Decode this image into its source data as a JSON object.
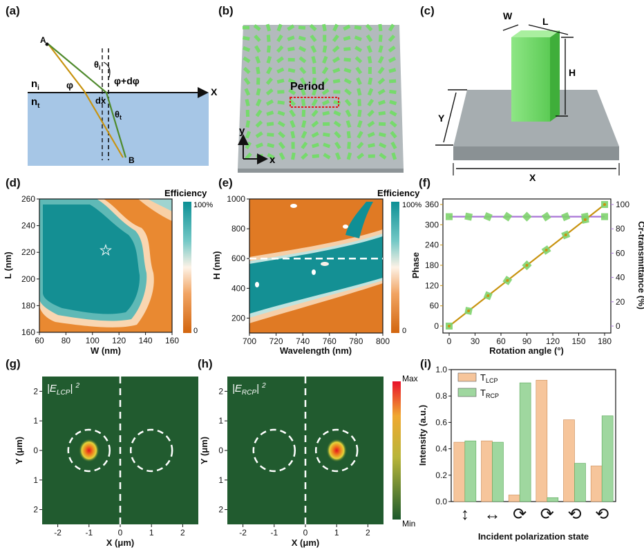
{
  "panels": {
    "a": {
      "label": "(a)",
      "point_a": "A",
      "point_b": "B",
      "n_i": "n",
      "n_i_sub": "i",
      "n_t": "n",
      "n_t_sub": "t",
      "phi": "φ",
      "phi_dphi": "φ+dφ",
      "dx": "dx",
      "theta_i": "θ",
      "theta_i_sub": "i",
      "theta_t": "θ",
      "theta_t_sub": "t",
      "x_axis": "X"
    },
    "b": {
      "label": "(b)",
      "period": "Period",
      "axis_x": "x",
      "axis_y": "y"
    },
    "c": {
      "label": "(c)",
      "w": "W",
      "l": "L",
      "h": "H",
      "y": "Y",
      "x": "X"
    },
    "d": {
      "label": "(d)"
    },
    "e": {
      "label": "(e)"
    },
    "f": {
      "label": "(f)"
    },
    "g": {
      "label": "(g)"
    },
    "h": {
      "label": "(h)"
    },
    "i": {
      "label": "(i)"
    }
  },
  "colors": {
    "orange": "#e0761a",
    "teal": "#0f9aa0",
    "gold": "#c8930f",
    "purple": "#a874d6",
    "green_marker": "#7ed36d",
    "field_bg": "#215b2f",
    "bar_lcp": "#f6c59b",
    "bar_rcp": "#9fd79f"
  },
  "chart_data": [
    {
      "id": "d",
      "type": "heatmap",
      "xlabel": "W (nm)",
      "ylabel": "L (nm)",
      "x_ticks": [
        "60",
        "80",
        "100",
        "120",
        "140",
        "160"
      ],
      "y_ticks": [
        "260",
        "240",
        "220",
        "200",
        "180",
        "160"
      ],
      "xlim": [
        60,
        160
      ],
      "ylim": [
        160,
        260
      ],
      "colorbar_title": "Efficiency",
      "colorbar_max": "100%",
      "colorbar_min": "0",
      "marker": {
        "symbol": "☆",
        "W": 110,
        "L": 222
      }
    },
    {
      "id": "e",
      "type": "heatmap",
      "xlabel": "Wavelength (nm)",
      "ylabel": "H (nm)",
      "x_ticks": [
        "700",
        "720",
        "740",
        "760",
        "780",
        "800"
      ],
      "y_ticks": [
        "1000",
        "800",
        "600",
        "400",
        "200"
      ],
      "xlim": [
        700,
        800
      ],
      "ylim": [
        100,
        1000
      ],
      "colorbar_title": "Efficiency",
      "colorbar_max": "100%",
      "colorbar_min": "0",
      "dashed_line_H": 600
    },
    {
      "id": "f",
      "type": "line",
      "xlabel": "Rotation angle (°)",
      "ylabel_left": "Phase",
      "ylabel_right": "Cr-transmittance (%)",
      "x_ticks": [
        "0",
        "30",
        "60",
        "90",
        "120",
        "150",
        "180"
      ],
      "y_left_ticks": [
        "0",
        "60",
        "120",
        "180",
        "240",
        "300",
        "360"
      ],
      "y_right_ticks": [
        "0",
        "20",
        "40",
        "60",
        "80",
        "100"
      ],
      "xlim": [
        0,
        180
      ],
      "ylim_left": [
        0,
        360
      ],
      "ylim_right": [
        0,
        100
      ],
      "x": [
        0,
        22.5,
        45,
        67.5,
        90,
        112.5,
        135,
        157.5,
        180
      ],
      "series": [
        {
          "name": "Phase",
          "axis": "left",
          "values": [
            0,
            45,
            90,
            135,
            180,
            225,
            270,
            315,
            360
          ]
        },
        {
          "name": "Cr-transmittance",
          "axis": "right",
          "values": [
            90,
            90,
            90,
            90,
            90,
            90,
            90,
            90,
            90
          ]
        }
      ]
    },
    {
      "id": "g",
      "type": "heatmap",
      "title": "|E",
      "title_sub": "LCP",
      "title_sup": "2",
      "xlabel": "X (μm)",
      "ylabel": "Y (μm)",
      "x_ticks": [
        "-2",
        "-1",
        "0",
        "1",
        "2"
      ],
      "y_ticks": [
        "2",
        "1",
        "0",
        "1",
        "2"
      ],
      "xlim": [
        -2.5,
        2.5
      ],
      "ylim": [
        -2.5,
        2.5
      ],
      "spot_x": -1
    },
    {
      "id": "h",
      "type": "heatmap",
      "title": "|E",
      "title_sub": "RCP",
      "title_sup": "2",
      "xlabel": "X (μm)",
      "ylabel": "Y (μm)",
      "x_ticks": [
        "-2",
        "-1",
        "0",
        "1",
        "2"
      ],
      "y_ticks": [
        "2",
        "1",
        "0",
        "1",
        "2"
      ],
      "xlim": [
        -2.5,
        2.5
      ],
      "ylim": [
        -2.5,
        2.5
      ],
      "spot_x": 1,
      "colorbar_max": "Max",
      "colorbar_min": "Min"
    },
    {
      "id": "i",
      "type": "bar",
      "xlabel": "Incident polarization state",
      "ylabel": "Intensity (a.u.)",
      "y_ticks": [
        "0.0",
        "0.2",
        "0.4",
        "0.6",
        "0.8",
        "1.0"
      ],
      "ylim": [
        0,
        1.0
      ],
      "categories": [
        "↕",
        "↔",
        "⟳",
        "⟳",
        "⟲",
        "⟲"
      ],
      "series": [
        {
          "name": "T",
          "sub": "LCP",
          "values": [
            0.45,
            0.46,
            0.05,
            0.92,
            0.62,
            0.27
          ]
        },
        {
          "name": "T",
          "sub": "RCP",
          "values": [
            0.46,
            0.45,
            0.9,
            0.03,
            0.29,
            0.65
          ]
        }
      ]
    }
  ]
}
